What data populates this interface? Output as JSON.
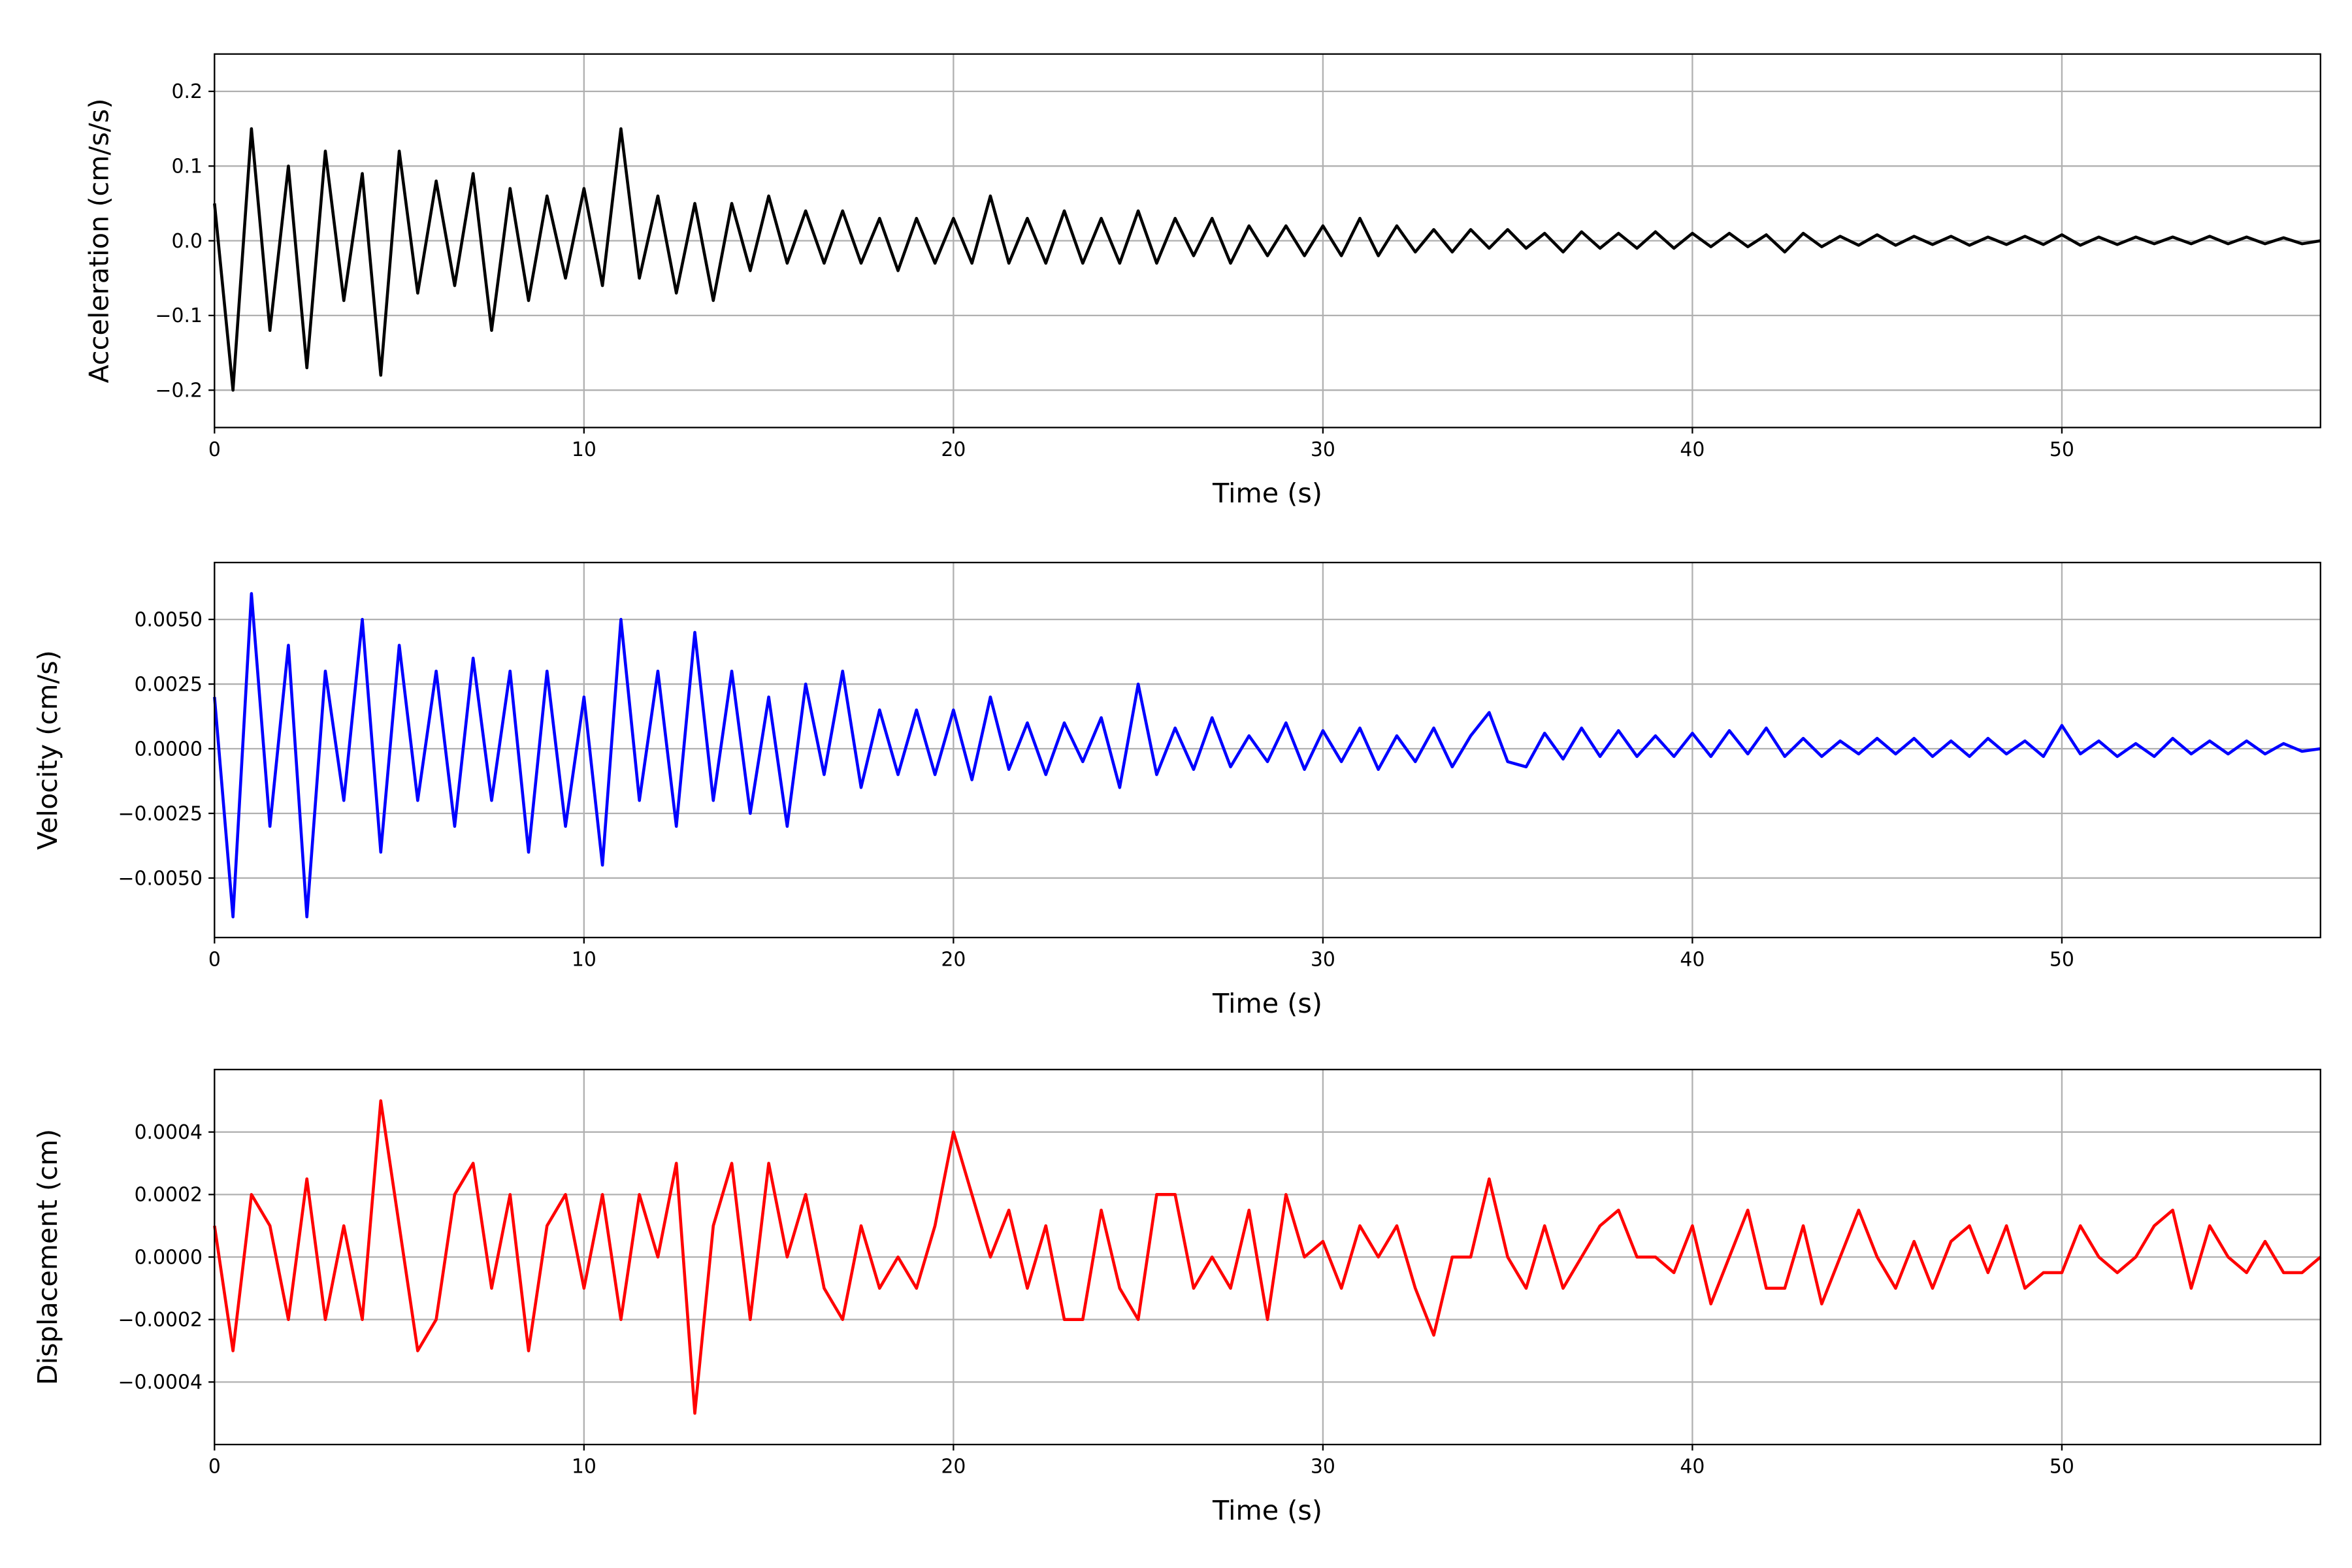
{
  "chart_data": [
    {
      "type": "line",
      "xlabel": "Time (s)",
      "ylabel": "Acceleration (cm/s/s)",
      "color": "#000000",
      "grid": true,
      "xlim": [
        0,
        57
      ],
      "xticks": [
        0,
        10,
        20,
        30,
        40,
        50
      ],
      "ylim": [
        -0.25,
        0.25
      ],
      "yticks": [
        {
          "value": -0.2,
          "label": "−0.2"
        },
        {
          "value": -0.1,
          "label": "−0.1"
        },
        {
          "value": 0,
          "label": "0.0"
        },
        0.1,
        0.2
      ],
      "x": [
        0,
        0.5,
        1,
        1.5,
        2,
        2.5,
        3,
        3.5,
        4,
        4.5,
        5,
        5.5,
        6,
        6.5,
        7,
        7.5,
        8,
        8.5,
        9,
        9.5,
        10,
        10.5,
        11,
        11.5,
        12,
        12.5,
        13,
        13.5,
        14,
        14.5,
        15,
        15.5,
        16,
        16.5,
        17,
        17.5,
        18,
        18.5,
        19,
        19.5,
        20,
        20.5,
        21,
        21.5,
        22,
        22.5,
        23,
        23.5,
        24,
        24.5,
        25,
        25.5,
        26,
        26.5,
        27,
        27.5,
        28,
        28.5,
        29,
        29.5,
        30,
        30.5,
        31,
        31.5,
        32,
        32.5,
        33,
        33.5,
        34,
        34.5,
        35,
        35.5,
        36,
        36.5,
        37,
        37.5,
        38,
        38.5,
        39,
        39.5,
        40,
        40.5,
        41,
        41.5,
        42,
        42.5,
        43,
        43.5,
        44,
        44.5,
        45,
        45.5,
        46,
        46.5,
        47,
        47.5,
        48,
        48.5,
        49,
        49.5,
        50,
        50.5,
        51,
        51.5,
        52,
        52.5,
        53,
        53.5,
        54,
        54.5,
        55,
        55.5,
        56,
        56.5,
        57
      ],
      "values": [
        0.05,
        -0.2,
        0.15,
        -0.12,
        0.1,
        -0.17,
        0.12,
        -0.08,
        0.09,
        -0.18,
        0.12,
        -0.07,
        0.08,
        -0.06,
        0.09,
        -0.12,
        0.07,
        -0.08,
        0.06,
        -0.05,
        0.07,
        -0.06,
        0.15,
        -0.05,
        0.06,
        -0.07,
        0.05,
        -0.08,
        0.05,
        -0.04,
        0.06,
        -0.03,
        0.04,
        -0.03,
        0.04,
        -0.03,
        0.03,
        -0.04,
        0.03,
        -0.03,
        0.03,
        -0.03,
        0.06,
        -0.03,
        0.03,
        -0.03,
        0.04,
        -0.03,
        0.03,
        -0.03,
        0.04,
        -0.03,
        0.03,
        -0.02,
        0.03,
        -0.03,
        0.02,
        -0.02,
        0.02,
        -0.02,
        0.02,
        -0.02,
        0.03,
        -0.02,
        0.02,
        -0.015,
        0.015,
        -0.015,
        0.015,
        -0.01,
        0.015,
        -0.01,
        0.01,
        -0.015,
        0.012,
        -0.01,
        0.01,
        -0.01,
        0.012,
        -0.01,
        0.01,
        -0.008,
        0.01,
        -0.008,
        0.008,
        -0.015,
        0.01,
        -0.008,
        0.006,
        -0.006,
        0.008,
        -0.006,
        0.006,
        -0.005,
        0.006,
        -0.006,
        0.005,
        -0.005,
        0.006,
        -0.005,
        0.008,
        -0.006,
        0.005,
        -0.005,
        0.005,
        -0.004,
        0.005,
        -0.004,
        0.006,
        -0.004,
        0.005,
        -0.004,
        0.004,
        -0.004,
        0
      ]
    },
    {
      "type": "line",
      "xlabel": "Time (s)",
      "ylabel": "Velocity (cm/s)",
      "color": "#0000ff",
      "grid": true,
      "xlim": [
        0,
        57
      ],
      "xticks": [
        0,
        10,
        20,
        30,
        40,
        50
      ],
      "ylim": [
        -0.0073,
        0.0072
      ],
      "yticks": [
        {
          "value": -0.005,
          "label": "−0.0050"
        },
        {
          "value": -0.0025,
          "label": "−0.0025"
        },
        {
          "value": 0,
          "label": "0.0000"
        },
        0.0025,
        {
          "value": 0.005,
          "label": "0.0050"
        }
      ],
      "x": [
        0,
        0.5,
        1,
        1.5,
        2,
        2.5,
        3,
        3.5,
        4,
        4.5,
        5,
        5.5,
        6,
        6.5,
        7,
        7.5,
        8,
        8.5,
        9,
        9.5,
        10,
        10.5,
        11,
        11.5,
        12,
        12.5,
        13,
        13.5,
        14,
        14.5,
        15,
        15.5,
        16,
        16.5,
        17,
        17.5,
        18,
        18.5,
        19,
        19.5,
        20,
        20.5,
        21,
        21.5,
        22,
        22.5,
        23,
        23.5,
        24,
        24.5,
        25,
        25.5,
        26,
        26.5,
        27,
        27.5,
        28,
        28.5,
        29,
        29.5,
        30,
        30.5,
        31,
        31.5,
        32,
        32.5,
        33,
        33.5,
        34,
        34.5,
        35,
        35.5,
        36,
        36.5,
        37,
        37.5,
        38,
        38.5,
        39,
        39.5,
        40,
        40.5,
        41,
        41.5,
        42,
        42.5,
        43,
        43.5,
        44,
        44.5,
        45,
        45.5,
        46,
        46.5,
        47,
        47.5,
        48,
        48.5,
        49,
        49.5,
        50,
        50.5,
        51,
        51.5,
        52,
        52.5,
        53,
        53.5,
        54,
        54.5,
        55,
        55.5,
        56,
        56.5,
        57
      ],
      "values": [
        0.002,
        -0.0065,
        0.006,
        -0.003,
        0.004,
        -0.0065,
        0.003,
        -0.002,
        0.005,
        -0.004,
        0.004,
        -0.002,
        0.003,
        -0.003,
        0.0035,
        -0.002,
        0.003,
        -0.004,
        0.003,
        -0.003,
        0.002,
        -0.0045,
        0.005,
        -0.002,
        0.003,
        -0.003,
        0.0045,
        -0.002,
        0.003,
        -0.0025,
        0.002,
        -0.003,
        0.0025,
        -0.001,
        0.003,
        -0.0015,
        0.0015,
        -0.001,
        0.0015,
        -0.001,
        0.0015,
        -0.0012,
        0.002,
        -0.0008,
        0.001,
        -0.001,
        0.001,
        -0.0005,
        0.0012,
        -0.0015,
        0.0025,
        -0.001,
        0.0008,
        -0.0008,
        0.0012,
        -0.0007,
        0.0005,
        -0.0005,
        0.001,
        -0.0008,
        0.0007,
        -0.0005,
        0.0008,
        -0.0008,
        0.0005,
        -0.0005,
        0.0008,
        -0.0007,
        0.0005,
        0.0014,
        -0.0005,
        -0.0007,
        0.0006,
        -0.0004,
        0.0008,
        -0.0003,
        0.0007,
        -0.0003,
        0.0005,
        -0.0003,
        0.0006,
        -0.0003,
        0.0007,
        -0.0002,
        0.0008,
        -0.0003,
        0.0004,
        -0.0003,
        0.0003,
        -0.0002,
        0.0004,
        -0.0002,
        0.0004,
        -0.0003,
        0.0003,
        -0.0003,
        0.0004,
        -0.0002,
        0.0003,
        -0.0003,
        0.0009,
        -0.0002,
        0.0003,
        -0.0003,
        0.0002,
        -0.0003,
        0.0004,
        -0.0002,
        0.0003,
        -0.0002,
        0.0003,
        -0.0002,
        0.0002,
        -0.0001,
        0
      ]
    },
    {
      "type": "line",
      "xlabel": "Time (s)",
      "ylabel": "Displacement (cm)",
      "color": "#ff0000",
      "grid": true,
      "xlim": [
        0,
        57
      ],
      "xticks": [
        0,
        10,
        20,
        30,
        40,
        50
      ],
      "ylim": [
        -0.0006,
        0.0006
      ],
      "yticks": [
        {
          "value": -0.0004,
          "label": "−0.0004"
        },
        {
          "value": -0.0002,
          "label": "−0.0002"
        },
        {
          "value": 0,
          "label": "0.0000"
        },
        0.0002,
        0.0004
      ],
      "x": [
        0,
        0.5,
        1,
        1.5,
        2,
        2.5,
        3,
        3.5,
        4,
        4.5,
        5,
        5.5,
        6,
        6.5,
        7,
        7.5,
        8,
        8.5,
        9,
        9.5,
        10,
        10.5,
        11,
        11.5,
        12,
        12.5,
        13,
        13.5,
        14,
        14.5,
        15,
        15.5,
        16,
        16.5,
        17,
        17.5,
        18,
        18.5,
        19,
        19.5,
        20,
        20.5,
        21,
        21.5,
        22,
        22.5,
        23,
        23.5,
        24,
        24.5,
        25,
        25.5,
        26,
        26.5,
        27,
        27.5,
        28,
        28.5,
        29,
        29.5,
        30,
        30.5,
        31,
        31.5,
        32,
        32.5,
        33,
        33.5,
        34,
        34.5,
        35,
        35.5,
        36,
        36.5,
        37,
        37.5,
        38,
        38.5,
        39,
        39.5,
        40,
        40.5,
        41,
        41.5,
        42,
        42.5,
        43,
        43.5,
        44,
        44.5,
        45,
        45.5,
        46,
        46.5,
        47,
        47.5,
        48,
        48.5,
        49,
        49.5,
        50,
        50.5,
        51,
        51.5,
        52,
        52.5,
        53,
        53.5,
        54,
        54.5,
        55,
        55.5,
        56,
        56.5,
        57
      ],
      "values": [
        0.0001,
        -0.0003,
        0.0002,
        0.0001,
        -0.0002,
        0.00025,
        -0.0002,
        0.0001,
        -0.0002,
        0.0005,
        0.0001,
        -0.0003,
        -0.0002,
        0.0002,
        0.0003,
        -0.0001,
        0.0002,
        -0.0003,
        0.0001,
        0.0002,
        -0.0001,
        0.0002,
        -0.0002,
        0.0002,
        0,
        0.0003,
        -0.0005,
        0.0001,
        0.0003,
        -0.0002,
        0.0003,
        0,
        0.0002,
        -0.0001,
        -0.0002,
        0.0001,
        -0.0001,
        0,
        -0.0001,
        0.0001,
        0.0004,
        0.0002,
        0,
        0.00015,
        -0.0001,
        0.0001,
        -0.0002,
        -0.0002,
        0.00015,
        -0.0001,
        -0.0002,
        0.0002,
        0.0002,
        -0.0001,
        0,
        -0.0001,
        0.00015,
        -0.0002,
        0.0002,
        0,
        5e-05,
        -0.0001,
        0.0001,
        0,
        0.0001,
        -0.0001,
        -0.00025,
        0,
        0,
        0.00025,
        0,
        -0.0001,
        0.0001,
        -0.0001,
        0,
        0.0001,
        0.00015,
        0,
        0,
        -5e-05,
        0.0001,
        -0.00015,
        0,
        0.00015,
        -0.0001,
        -0.0001,
        0.0001,
        -0.00015,
        0,
        0.00015,
        0,
        -0.0001,
        5e-05,
        -0.0001,
        5e-05,
        0.0001,
        -5e-05,
        0.0001,
        -0.0001,
        -5e-05,
        -5e-05,
        0.0001,
        0,
        -5e-05,
        0,
        0.0001,
        0.00015,
        -0.0001,
        0.0001,
        0,
        -5e-05,
        5e-05,
        -5e-05,
        -5e-05,
        0
      ]
    }
  ]
}
